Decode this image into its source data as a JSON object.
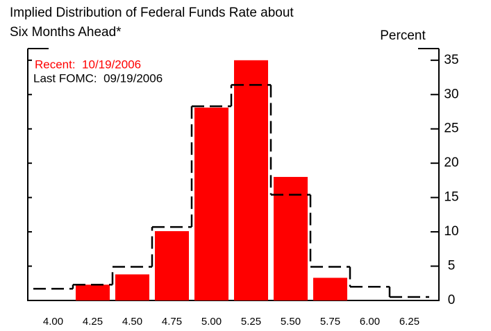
{
  "chart_data": {
    "type": "bar",
    "title": [
      "Implied Distribution of Federal Funds Rate about",
      "Six Months Ahead*"
    ],
    "y_label": "Percent",
    "categories": [
      "4.00",
      "4.25",
      "4.50",
      "4.75",
      "5.00",
      "5.25",
      "5.50",
      "5.75",
      "6.00",
      "6.25"
    ],
    "series": [
      {
        "name": "Recent:  10/19/2006",
        "color": "#ff0000",
        "style": "bar",
        "values": [
          0,
          2.3,
          3.8,
          10.1,
          28.1,
          35.0,
          18.0,
          3.3,
          0,
          0
        ]
      },
      {
        "name": "Last FOMC:  09/19/2006",
        "color": "#000000",
        "style": "step",
        "values": [
          1.7,
          2.3,
          4.9,
          10.7,
          28.3,
          31.4,
          15.4,
          4.9,
          2.0,
          0.5
        ]
      }
    ],
    "ylim": [
      0,
      36.7
    ],
    "yticks": [
      0,
      5,
      10,
      15,
      20,
      25,
      30,
      35
    ]
  }
}
